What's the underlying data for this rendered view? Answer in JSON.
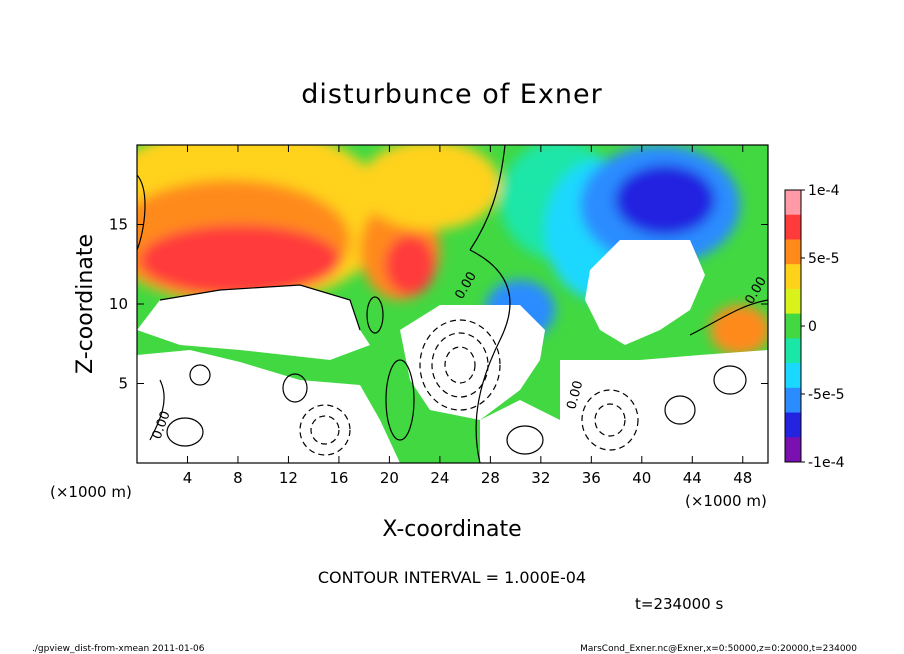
{
  "chart_data": {
    "type": "heatmap",
    "title": "disturbunce of Exner",
    "xlabel": "X-coordinate",
    "ylabel": "Z-coordinate",
    "x_unit_label": "(×1000 m)",
    "z_unit_label": "(×1000 m)",
    "xlim": [
      0,
      50
    ],
    "ylim": [
      0,
      20
    ],
    "x_ticks": [
      4,
      8,
      12,
      16,
      20,
      24,
      28,
      32,
      36,
      40,
      44,
      48
    ],
    "y_ticks": [
      5,
      10,
      15
    ],
    "colorbar": {
      "min": -0.0001,
      "max": 0.0001,
      "tick_labels": [
        "1e-4",
        "5e-5",
        "0",
        "-5e-5",
        "-1e-4"
      ],
      "tick_values": [
        0.0001,
        5e-05,
        0,
        -5e-05,
        -0.0001
      ],
      "colors": [
        "#ff9aa6",
        "#ff3a3a",
        "#ff8a1a",
        "#ffd21a",
        "#d8f21a",
        "#42d842",
        "#1ae6a8",
        "#1ad8ff",
        "#2a8cff",
        "#2424e0",
        "#7a10b0"
      ]
    },
    "contour_labels": [
      "0.00",
      "0.00",
      "0.00",
      "0.00"
    ],
    "contour_interval_text": "CONTOUR INTERVAL = 1.000E-04",
    "time_label": "t=234000 s",
    "field_note": "value > 1e-4 and < -1e-4 unshaded (white) with contour lines"
  },
  "footer": {
    "left": "./gpview_dist-from-xmean 2011-01-06",
    "right": "MarsCond_Exner.nc@Exner,x=0:50000,z=0:20000,t=234000"
  }
}
